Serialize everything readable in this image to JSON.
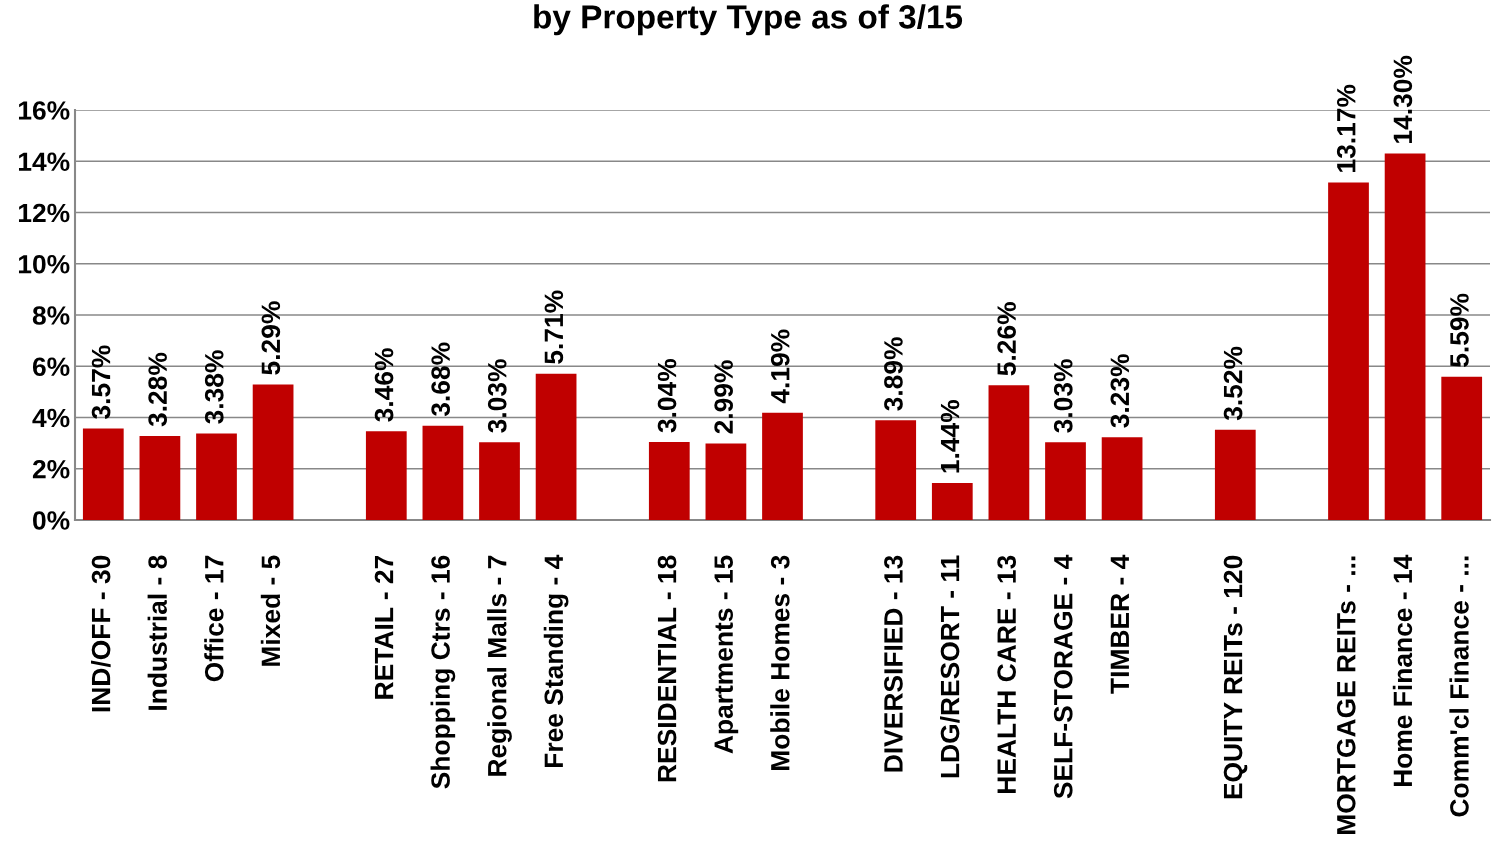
{
  "chart_data": {
    "type": "bar",
    "title": "by Property Type as of 3/15",
    "categories": [
      "IND/OFF - 30",
      "Industrial - 8",
      "Office - 17",
      "Mixed - 5",
      null,
      "RETAIL - 27",
      "Shopping Ctrs - 16",
      "Regional Malls - 7",
      "Free Standing - 4",
      null,
      "RESIDENTIAL - 18",
      "Apartments - 15",
      "Mobile Homes - 3",
      null,
      "DIVERSIFIED - 13",
      "LDG/RESORT - 11",
      "HEALTH CARE - 13",
      "SELF-STORAGE - 4",
      "TIMBER - 4",
      null,
      "EQUITY REITs - 120",
      null,
      "MORTGAGE REITs - ...",
      "Home Finance - 14",
      "Comm'cl Finance - ..."
    ],
    "values": [
      3.57,
      3.28,
      3.38,
      5.29,
      null,
      3.46,
      3.68,
      3.03,
      5.71,
      null,
      3.04,
      2.99,
      4.19,
      null,
      3.89,
      1.44,
      5.26,
      3.03,
      3.23,
      null,
      3.52,
      null,
      13.17,
      14.3,
      5.59
    ],
    "value_labels": [
      "3.57%",
      "3.28%",
      "3.38%",
      "5.29%",
      null,
      "3.46%",
      "3.68%",
      "3.03%",
      "5.71%",
      null,
      "3.04%",
      "2.99%",
      "4.19%",
      null,
      "3.89%",
      "1.44%",
      "5.26%",
      "3.03%",
      "3.23%",
      null,
      "3.52%",
      null,
      "13.17%",
      "14.30%",
      "5.59%"
    ],
    "color": "#c00000",
    "ylim": [
      0,
      16
    ],
    "yticks": [
      {
        "value": 0,
        "label": "0%"
      },
      {
        "value": 2,
        "label": "2%"
      },
      {
        "value": 4,
        "label": "4%"
      },
      {
        "value": 6,
        "label": "6%"
      },
      {
        "value": 8,
        "label": "8%"
      },
      {
        "value": 10,
        "label": "10%"
      },
      {
        "value": 12,
        "label": "12%"
      },
      {
        "value": 14,
        "label": "14%"
      },
      {
        "value": 16,
        "label": "16%"
      }
    ],
    "grid": "y"
  }
}
